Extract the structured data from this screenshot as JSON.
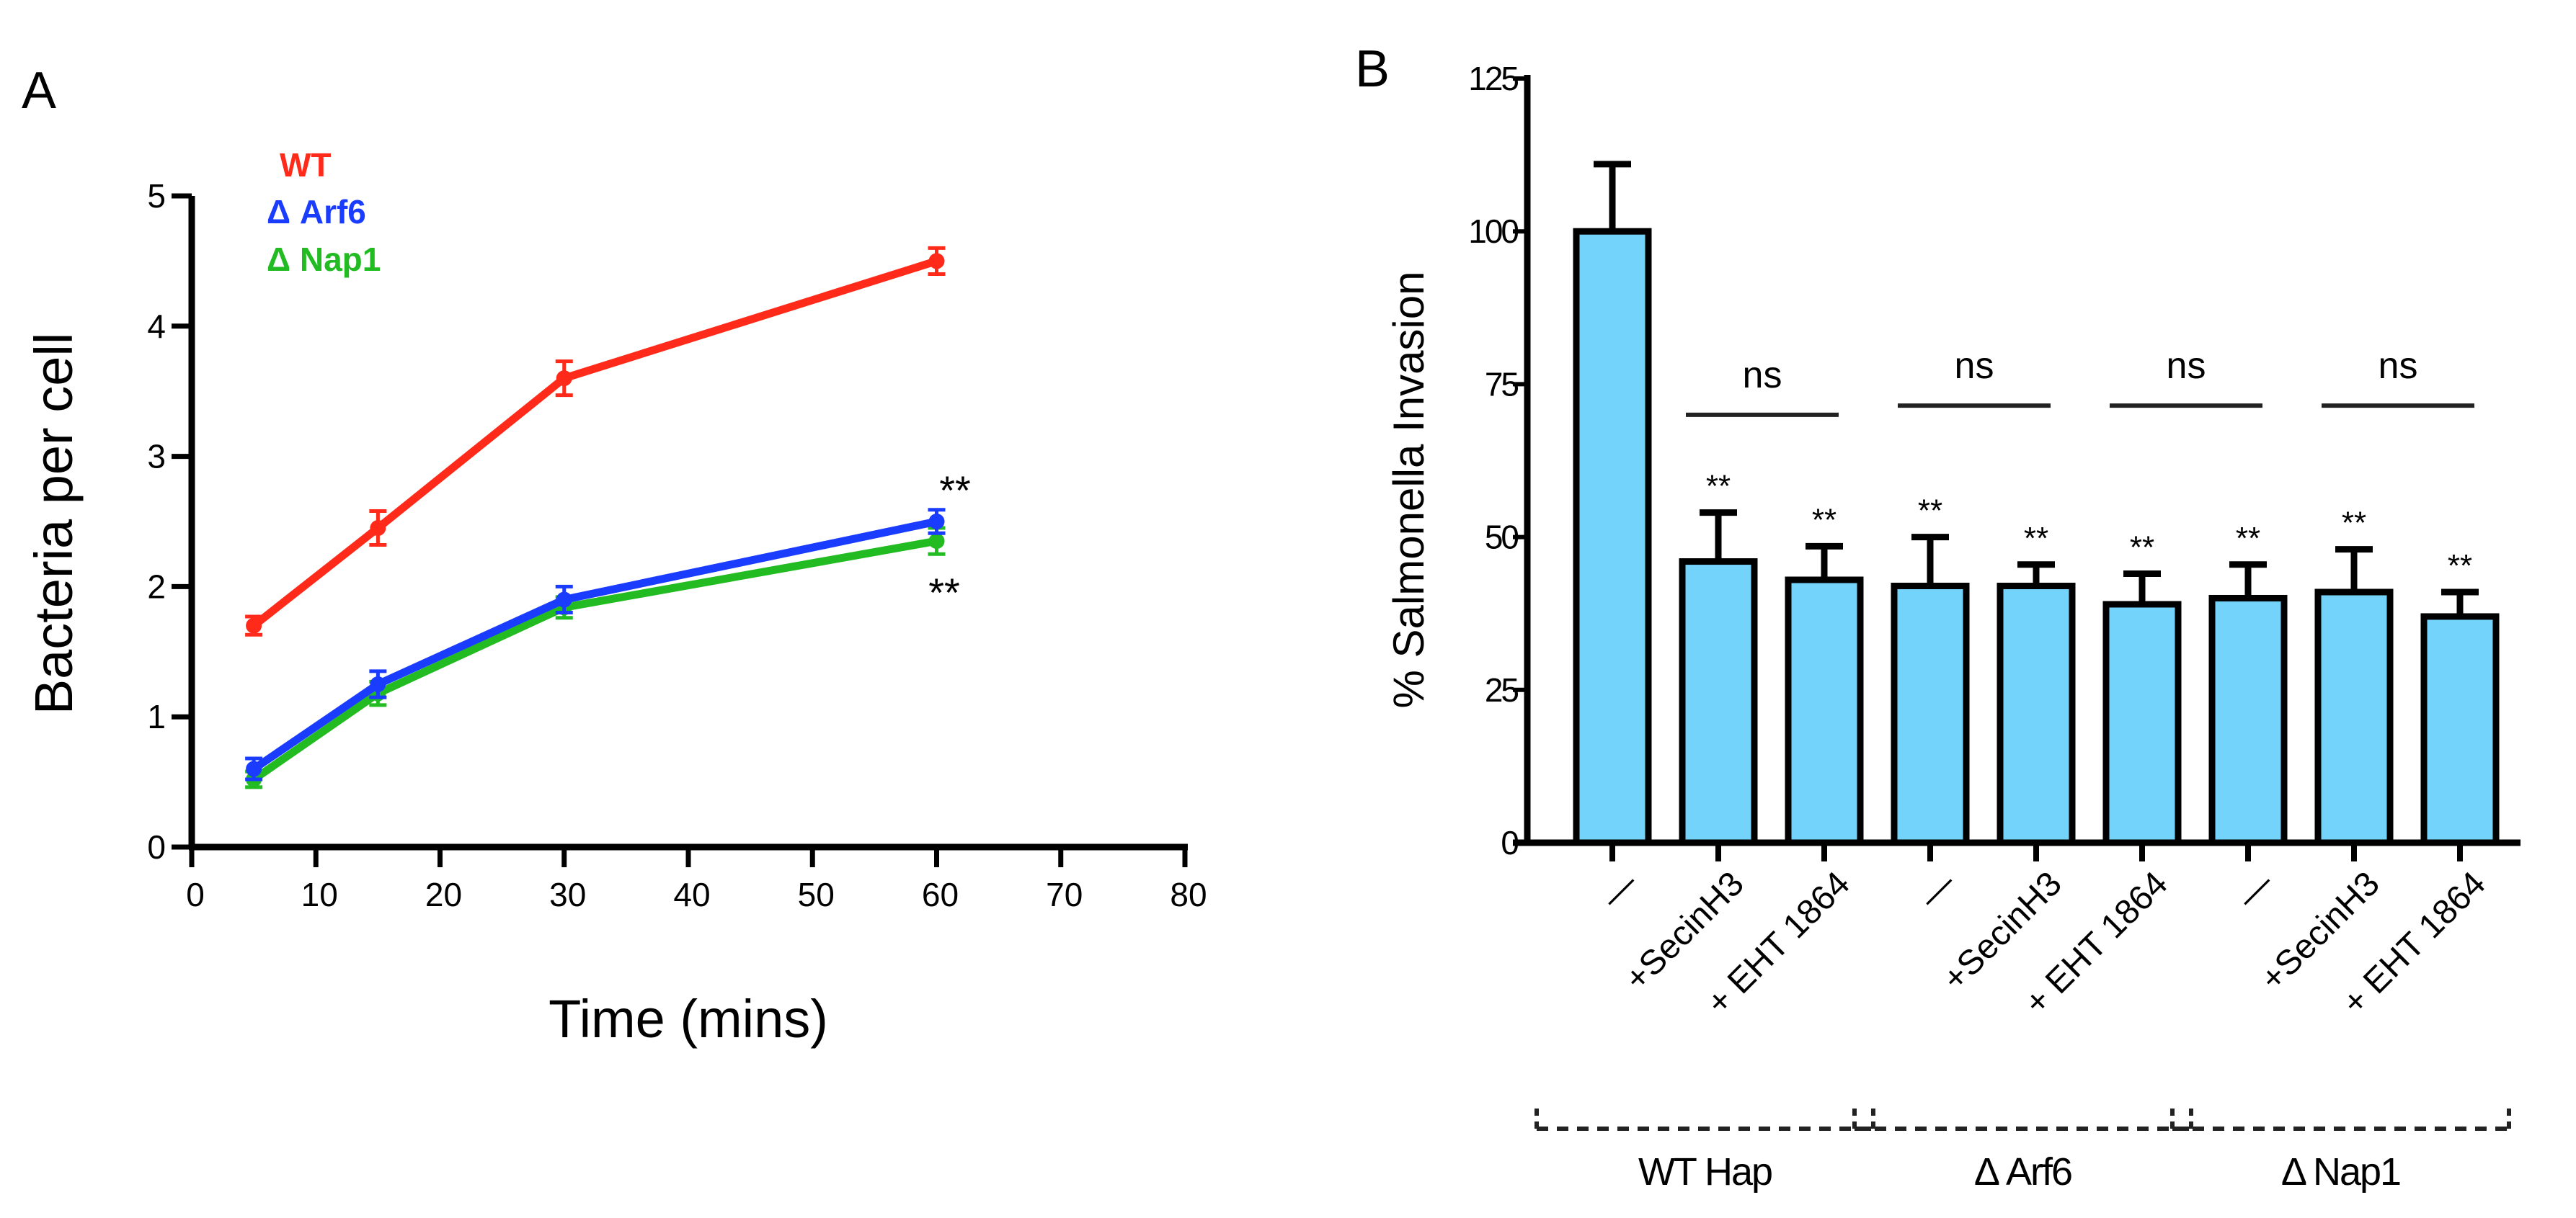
{
  "chart_data": [
    {
      "type": "line",
      "panel_label": "A",
      "xlabel": "Time (mins)",
      "ylabel": "Bacteria per cell",
      "xlim": [
        0,
        80
      ],
      "ylim": [
        0,
        5
      ],
      "xticks": [
        "0",
        "10",
        "20",
        "30",
        "40",
        "50",
        "60",
        "70",
        "80"
      ],
      "yticks": [
        "0",
        "1",
        "2",
        "3",
        "4",
        "5"
      ],
      "legend_position": "top-left",
      "x": [
        5,
        15,
        30,
        60
      ],
      "series": [
        {
          "name": "WT",
          "color": "#ff2a1a",
          "values": [
            1.7,
            2.45,
            3.6,
            4.5
          ],
          "errors": [
            0.07,
            0.13,
            0.13,
            0.1
          ]
        },
        {
          "name": "Δ Arf6",
          "color": "#1a3cff",
          "values": [
            0.6,
            1.25,
            1.9,
            2.5
          ],
          "errors": [
            0.08,
            0.1,
            0.1,
            0.09
          ]
        },
        {
          "name": "Δ Nap1",
          "color": "#22bb22",
          "values": [
            0.52,
            1.18,
            1.84,
            2.35
          ],
          "errors": [
            0.06,
            0.09,
            0.08,
            0.1
          ]
        }
      ],
      "annotations": [
        {
          "text": "**",
          "x": 60,
          "y": 2.9
        },
        {
          "text": "**",
          "x": 60,
          "y": 2.0
        }
      ]
    },
    {
      "type": "bar",
      "panel_label": "B",
      "ylabel": "% Salmonella Invasion",
      "ylim": [
        0,
        125
      ],
      "yticks": [
        "0",
        "25",
        "50",
        "75",
        "100",
        "125"
      ],
      "bar_color": "#74d3fb",
      "categories": [
        "—",
        "+SecinH3",
        "+ EHT 1864",
        "—",
        "+SecinH3",
        "+ EHT 1864",
        "—",
        "+SecinH3",
        "+ EHT 1864"
      ],
      "values": [
        100,
        46,
        43,
        42,
        42,
        39,
        40,
        41,
        37
      ],
      "errors": [
        11,
        8,
        5.5,
        8,
        3.5,
        5,
        5.5,
        7,
        4
      ],
      "significance": [
        "",
        "**",
        "**",
        "**",
        "**",
        "**",
        "**",
        "**",
        "**"
      ],
      "ns_brackets": [
        {
          "text": "ns",
          "from": 1,
          "to": 2,
          "y": 70
        },
        {
          "text": "ns",
          "from": 3,
          "to": 4,
          "y": 71.5
        },
        {
          "text": "ns",
          "from": 5,
          "to": 6,
          "y": 71.5
        },
        {
          "text": "ns",
          "from": 7,
          "to": 8,
          "y": 71.5
        }
      ],
      "groups": [
        {
          "label": "WT Hap",
          "from": 0,
          "to": 2
        },
        {
          "label": "Δ Arf6",
          "from": 3,
          "to": 5
        },
        {
          "label": "Δ Nap1",
          "from": 6,
          "to": 8
        }
      ]
    }
  ]
}
